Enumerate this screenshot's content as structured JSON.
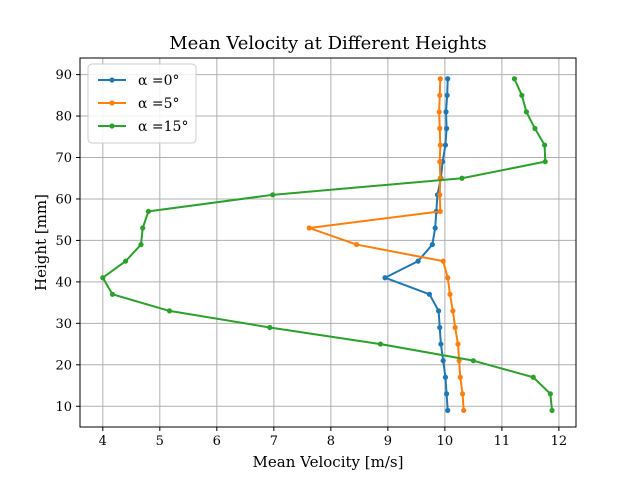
{
  "chart_data": {
    "type": "line",
    "title": "Mean Velocity at Different Heights",
    "xlabel": "Mean Velocity [m/s]",
    "ylabel": "Height [mm]",
    "xlim": [
      3.6,
      12.3
    ],
    "ylim": [
      5,
      94
    ],
    "xticks": [
      4,
      5,
      6,
      7,
      8,
      9,
      10,
      11,
      12
    ],
    "yticks": [
      10,
      20,
      30,
      40,
      50,
      60,
      70,
      80,
      90
    ],
    "grid": true,
    "legend_position": "top-left",
    "series": [
      {
        "name": "α =0°",
        "color": "#1f77b4",
        "points": [
          [
            10.05,
            9
          ],
          [
            10.03,
            13
          ],
          [
            10.01,
            17
          ],
          [
            9.97,
            21
          ],
          [
            9.93,
            25
          ],
          [
            9.91,
            29
          ],
          [
            9.89,
            33
          ],
          [
            9.73,
            37
          ],
          [
            8.95,
            41
          ],
          [
            9.53,
            45
          ],
          [
            9.78,
            49
          ],
          [
            9.83,
            53
          ],
          [
            9.85,
            57
          ],
          [
            9.87,
            61
          ],
          [
            9.93,
            65
          ],
          [
            9.96,
            69
          ],
          [
            10.01,
            73
          ],
          [
            10.03,
            77
          ],
          [
            10.02,
            81
          ],
          [
            10.04,
            85
          ],
          [
            10.05,
            89
          ]
        ]
      },
      {
        "name": "α =5°",
        "color": "#ff7f0e",
        "points": [
          [
            10.33,
            9
          ],
          [
            10.31,
            13
          ],
          [
            10.27,
            17
          ],
          [
            10.25,
            21
          ],
          [
            10.23,
            25
          ],
          [
            10.18,
            29
          ],
          [
            10.14,
            33
          ],
          [
            10.09,
            37
          ],
          [
            10.05,
            41
          ],
          [
            9.97,
            45
          ],
          [
            8.45,
            49
          ],
          [
            7.62,
            53
          ],
          [
            9.92,
            57
          ],
          [
            9.91,
            61
          ],
          [
            9.92,
            65
          ],
          [
            9.91,
            69
          ],
          [
            9.92,
            73
          ],
          [
            9.91,
            77
          ],
          [
            9.9,
            81
          ],
          [
            9.91,
            85
          ],
          [
            9.92,
            89
          ]
        ]
      },
      {
        "name": "α =15°",
        "color": "#2ca02c",
        "points": [
          [
            11.88,
            9
          ],
          [
            11.85,
            13
          ],
          [
            11.55,
            17
          ],
          [
            10.5,
            21
          ],
          [
            8.87,
            25
          ],
          [
            6.93,
            29
          ],
          [
            5.17,
            33
          ],
          [
            4.17,
            37
          ],
          [
            4.0,
            41
          ],
          [
            4.4,
            45
          ],
          [
            4.67,
            49
          ],
          [
            4.7,
            53
          ],
          [
            4.8,
            57
          ],
          [
            6.98,
            61
          ],
          [
            10.3,
            65
          ],
          [
            11.76,
            69
          ],
          [
            11.75,
            73
          ],
          [
            11.58,
            77
          ],
          [
            11.43,
            81
          ],
          [
            11.35,
            85
          ],
          [
            11.22,
            89
          ]
        ]
      }
    ]
  }
}
